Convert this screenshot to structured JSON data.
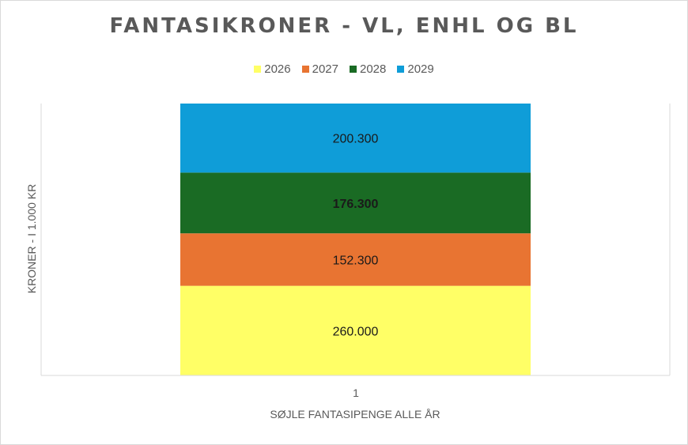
{
  "chart_data": {
    "type": "bar",
    "stacked": true,
    "title": "FANTASIKRONER - VL, ENHL OG BL",
    "xlabel": "SØJLE FANTASIPENGE ALLE ÅR",
    "ylabel": "KRONER - I 1.000 KR",
    "categories": [
      "1"
    ],
    "series": [
      {
        "name": "2026",
        "values": [
          260000
        ],
        "label": "260.000",
        "color": "#ffff66"
      },
      {
        "name": "2027",
        "values": [
          152300
        ],
        "label": "152.300",
        "color": "#e87432"
      },
      {
        "name": "2028",
        "values": [
          176300
        ],
        "label": "176.300",
        "color": "#1a6b24"
      },
      {
        "name": "2029",
        "values": [
          200300
        ],
        "label": "200.300",
        "color": "#0f9dd8"
      }
    ],
    "legend": "top",
    "grid": false
  }
}
